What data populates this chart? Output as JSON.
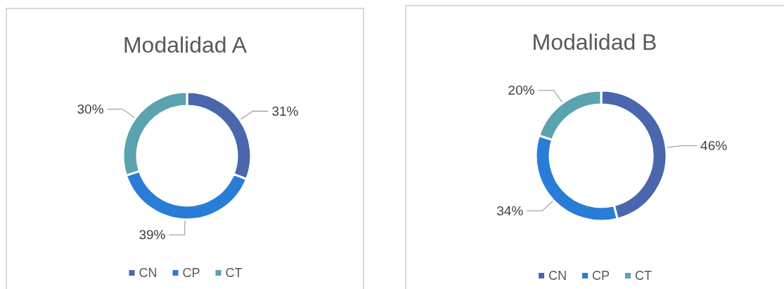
{
  "chart_data": [
    {
      "type": "donut",
      "title": "Modalidad A",
      "categories": [
        "CN",
        "CP",
        "CT"
      ],
      "values": [
        31,
        39,
        30
      ],
      "colors": [
        "#4a66ac",
        "#2a7dd6",
        "#5ba3ae"
      ],
      "value_labels": [
        "31%",
        "39%",
        "30%"
      ],
      "legend": "bottom"
    },
    {
      "type": "donut",
      "title": "Modalidad B",
      "categories": [
        "CN",
        "CP",
        "CT"
      ],
      "values": [
        46,
        34,
        20
      ],
      "colors": [
        "#4a66ac",
        "#2a7dd6",
        "#5ba3ae"
      ],
      "value_labels": [
        "46%",
        "34%",
        "20%"
      ],
      "legend": "bottom"
    }
  ]
}
